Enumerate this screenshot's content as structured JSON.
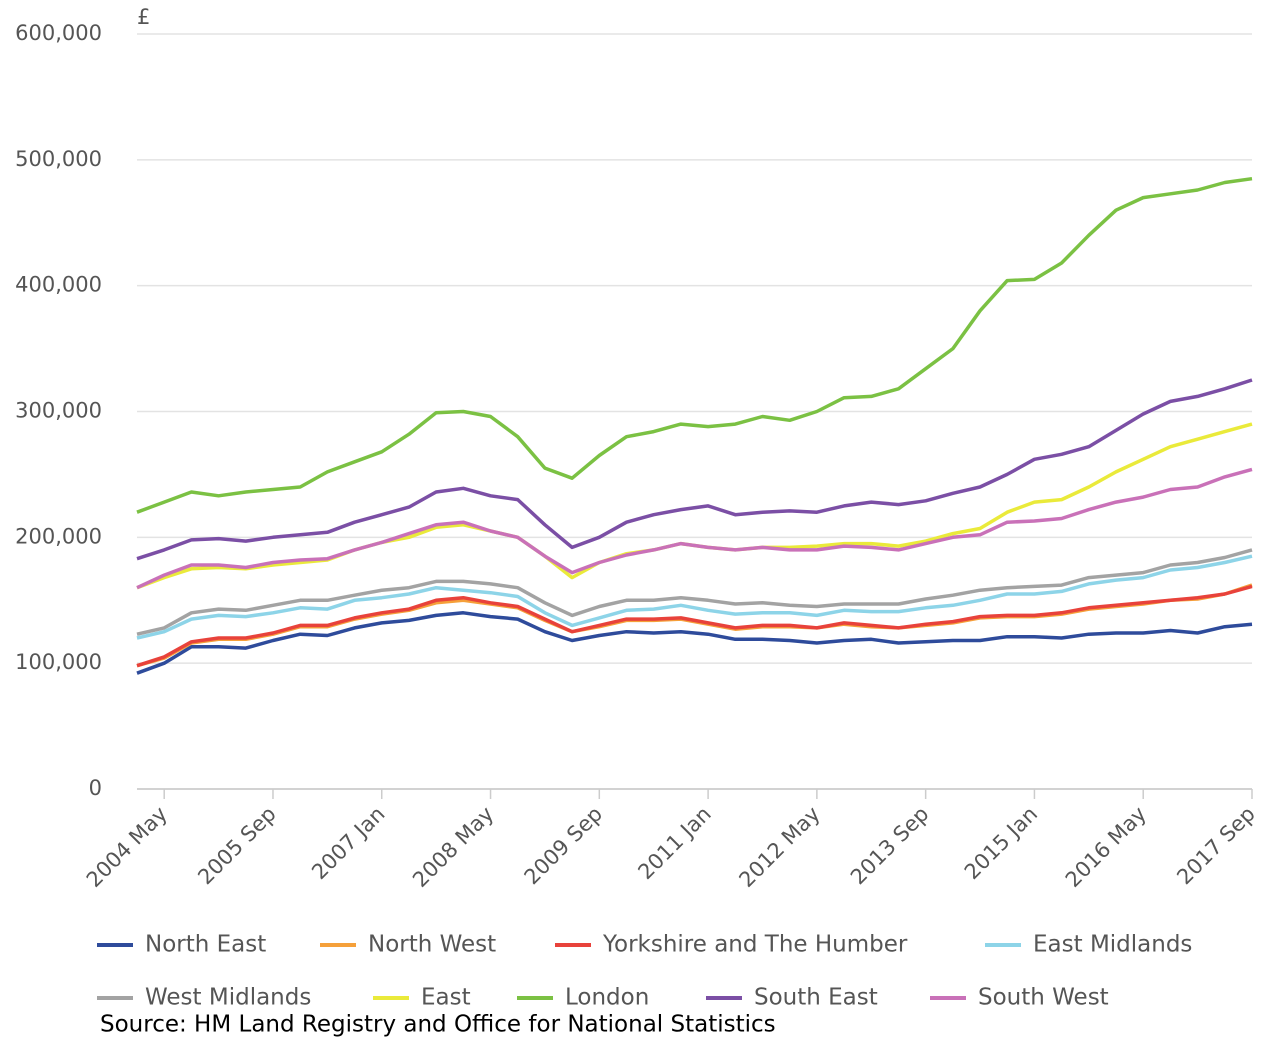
{
  "chart_data": {
    "type": "line",
    "y_label": "£",
    "source": "Source: HM Land Registry and Office for National Statistics",
    "categories": [
      null,
      "2004 May",
      null,
      null,
      null,
      "2005 Sep",
      null,
      null,
      null,
      "2007 Jan",
      null,
      null,
      null,
      "2008 May",
      null,
      null,
      null,
      "2009 Sep",
      null,
      null,
      null,
      "2011 Jan",
      null,
      null,
      null,
      "2012 May",
      null,
      null,
      null,
      "2013 Sep",
      null,
      null,
      null,
      "2015 Jan",
      null,
      null,
      null,
      "2016 May",
      null,
      null,
      null,
      "2017 Sep"
    ],
    "ylim": [
      0,
      600000
    ],
    "yticks": [
      0,
      {
        "value": 100000,
        "label": "100,000"
      },
      {
        "value": 200000,
        "label": "200,000"
      },
      {
        "value": 300000,
        "label": "300,000"
      },
      {
        "value": 400000,
        "label": "400,000"
      },
      {
        "value": 500000,
        "label": "500,000"
      },
      {
        "value": 600000,
        "label": "600,000"
      }
    ],
    "grid": true,
    "legend": "bottom",
    "series": [
      {
        "name": "North East",
        "color": "#2e4b9b",
        "values": [
          92000,
          100000,
          113000,
          113000,
          112000,
          118000,
          123000,
          122000,
          128000,
          132000,
          134000,
          138000,
          140000,
          137000,
          135000,
          125000,
          118000,
          122000,
          125000,
          124000,
          125000,
          123000,
          119000,
          119000,
          118000,
          116000,
          118000,
          119000,
          116000,
          117000,
          118000,
          118000,
          121000,
          121000,
          120000,
          123000,
          124000,
          124000,
          126000,
          124000,
          129000,
          131000
        ]
      },
      {
        "name": "North West",
        "color": "#f5a03a",
        "values": [
          98000,
          104000,
          116000,
          119000,
          119000,
          123000,
          129000,
          129000,
          135000,
          139000,
          142000,
          148000,
          150000,
          147000,
          144000,
          134000,
          125000,
          129000,
          134000,
          134000,
          135000,
          131000,
          127000,
          129000,
          129000,
          128000,
          131000,
          129000,
          128000,
          130000,
          132000,
          136000,
          137000,
          137000,
          139000,
          143000,
          145000,
          147000,
          150000,
          151000,
          155000,
          162000
        ]
      },
      {
        "name": "Yorkshire and The Humber",
        "color": "#e8423b",
        "values": [
          98000,
          105000,
          117000,
          120000,
          120000,
          124000,
          130000,
          130000,
          136000,
          140000,
          143000,
          150000,
          152000,
          148000,
          145000,
          135000,
          125000,
          130000,
          135000,
          135000,
          136000,
          132000,
          128000,
          130000,
          130000,
          128000,
          132000,
          130000,
          128000,
          131000,
          133000,
          137000,
          138000,
          138000,
          140000,
          144000,
          146000,
          148000,
          150000,
          152000,
          155000,
          161000
        ]
      },
      {
        "name": "East Midlands",
        "color": "#8dd4e8",
        "values": [
          120000,
          125000,
          135000,
          138000,
          137000,
          140000,
          144000,
          143000,
          150000,
          152000,
          155000,
          160000,
          158000,
          156000,
          153000,
          140000,
          130000,
          136000,
          142000,
          143000,
          146000,
          142000,
          139000,
          140000,
          140000,
          138000,
          142000,
          141000,
          141000,
          144000,
          146000,
          150000,
          155000,
          155000,
          157000,
          163000,
          166000,
          168000,
          174000,
          176000,
          180000,
          185000
        ]
      },
      {
        "name": "West Midlands",
        "color": "#a3a3a3",
        "values": [
          123000,
          128000,
          140000,
          143000,
          142000,
          146000,
          150000,
          150000,
          154000,
          158000,
          160000,
          165000,
          165000,
          163000,
          160000,
          148000,
          138000,
          145000,
          150000,
          150000,
          152000,
          150000,
          147000,
          148000,
          146000,
          145000,
          147000,
          147000,
          147000,
          151000,
          154000,
          158000,
          160000,
          161000,
          162000,
          168000,
          170000,
          172000,
          178000,
          180000,
          184000,
          190000
        ]
      },
      {
        "name": "East",
        "color": "#eaea3a",
        "values": [
          160000,
          168000,
          175000,
          176000,
          175000,
          178000,
          180000,
          182000,
          190000,
          196000,
          200000,
          208000,
          210000,
          205000,
          200000,
          185000,
          168000,
          180000,
          187000,
          190000,
          195000,
          192000,
          190000,
          192000,
          192000,
          193000,
          195000,
          195000,
          193000,
          197000,
          203000,
          207000,
          220000,
          228000,
          230000,
          240000,
          252000,
          262000,
          272000,
          278000,
          284000,
          290000
        ]
      },
      {
        "name": "London",
        "color": "#7bc143",
        "values": [
          220000,
          228000,
          236000,
          233000,
          236000,
          238000,
          240000,
          252000,
          260000,
          268000,
          282000,
          299000,
          300000,
          296000,
          280000,
          255000,
          247000,
          265000,
          280000,
          284000,
          290000,
          288000,
          290000,
          296000,
          293000,
          300000,
          311000,
          312000,
          318000,
          334000,
          350000,
          380000,
          404000,
          405000,
          418000,
          440000,
          460000,
          470000,
          473000,
          476000,
          482000,
          485000
        ]
      },
      {
        "name": "South East",
        "color": "#7b4fa5",
        "values": [
          183000,
          190000,
          198000,
          199000,
          197000,
          200000,
          202000,
          204000,
          212000,
          218000,
          224000,
          236000,
          239000,
          233000,
          230000,
          210000,
          192000,
          200000,
          212000,
          218000,
          222000,
          225000,
          218000,
          220000,
          221000,
          220000,
          225000,
          228000,
          226000,
          229000,
          235000,
          240000,
          250000,
          262000,
          266000,
          272000,
          285000,
          298000,
          308000,
          312000,
          318000,
          325000
        ]
      },
      {
        "name": "South West",
        "color": "#c971b8",
        "values": [
          160000,
          170000,
          178000,
          178000,
          176000,
          180000,
          182000,
          183000,
          190000,
          196000,
          203000,
          210000,
          212000,
          205000,
          200000,
          185000,
          172000,
          180000,
          186000,
          190000,
          195000,
          192000,
          190000,
          192000,
          190000,
          190000,
          193000,
          192000,
          190000,
          195000,
          200000,
          202000,
          212000,
          213000,
          215000,
          222000,
          228000,
          232000,
          238000,
          240000,
          248000,
          254000
        ]
      }
    ]
  }
}
